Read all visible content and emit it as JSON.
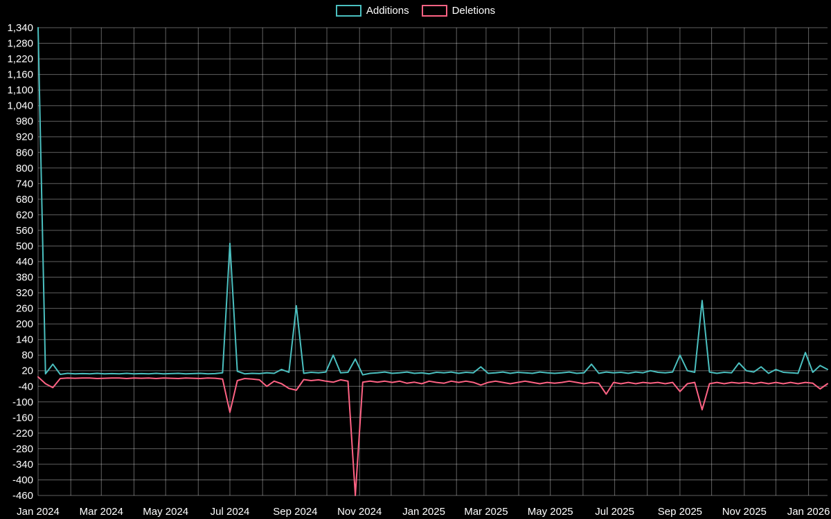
{
  "colors": {
    "background": "#000000",
    "grid": "rgba(255,255,255,0.38)",
    "axis_text": "#ffffff"
  },
  "chart_data": {
    "type": "line",
    "title": "",
    "legend_position": "top",
    "grid": true,
    "x_axis": {
      "tick_labels": [
        "Jan 2024",
        "Mar 2024",
        "May 2024",
        "Jul 2024",
        "Sep 2024",
        "Nov 2024",
        "Jan 2025",
        "Mar 2025",
        "May 2025",
        "Jul 2025",
        "Sep 2025",
        "Nov 2025",
        "Jan 2026"
      ],
      "months_spanned": 24,
      "point_interval": "weekly"
    },
    "y_axis": {
      "min": -460,
      "max": 1340,
      "tick_step": 60,
      "tick_labels": [
        "1,340",
        "1,280",
        "1,220",
        "1,160",
        "1,100",
        "1,040",
        "980",
        "920",
        "860",
        "800",
        "740",
        "680",
        "620",
        "560",
        "500",
        "440",
        "380",
        "320",
        "260",
        "200",
        "140",
        "80",
        "20",
        "-40",
        "-100",
        "-160",
        "-220",
        "-280",
        "-340",
        "-400",
        "-460"
      ]
    },
    "series": [
      {
        "name": "Additions",
        "color": "#4bc0c0",
        "values": [
          1340,
          8,
          45,
          6,
          10,
          8,
          9,
          8,
          10,
          8,
          9,
          8,
          10,
          8,
          9,
          8,
          10,
          8,
          9,
          10,
          8,
          9,
          10,
          8,
          9,
          12,
          510,
          18,
          8,
          10,
          9,
          12,
          10,
          25,
          14,
          270,
          10,
          14,
          12,
          15,
          80,
          12,
          14,
          65,
          4,
          10,
          12,
          15,
          10,
          12,
          15,
          10,
          12,
          8,
          14,
          12,
          15,
          10,
          14,
          12,
          35,
          10,
          12,
          15,
          10,
          14,
          12,
          10,
          15,
          12,
          10,
          12,
          15,
          10,
          12,
          45,
          10,
          15,
          12,
          14,
          10,
          15,
          12,
          20,
          14,
          12,
          15,
          80,
          20,
          14,
          290,
          15,
          10,
          14,
          12,
          50,
          20,
          15,
          35,
          10,
          25,
          14,
          12,
          10,
          90,
          14,
          40,
          25
        ]
      },
      {
        "name": "Deletions",
        "color": "#ff6384",
        "values": [
          -4,
          -30,
          -45,
          -10,
          -8,
          -9,
          -8,
          -8,
          -10,
          -9,
          -8,
          -8,
          -10,
          -8,
          -9,
          -8,
          -10,
          -8,
          -9,
          -10,
          -8,
          -9,
          -10,
          -8,
          -9,
          -12,
          -140,
          -18,
          -10,
          -12,
          -15,
          -40,
          -20,
          -30,
          -48,
          -55,
          -14,
          -18,
          -15,
          -20,
          -24,
          -15,
          -20,
          -460,
          -24,
          -20,
          -24,
          -20,
          -25,
          -20,
          -28,
          -24,
          -30,
          -20,
          -25,
          -28,
          -20,
          -25,
          -20,
          -25,
          -35,
          -25,
          -20,
          -25,
          -30,
          -25,
          -20,
          -25,
          -30,
          -25,
          -28,
          -25,
          -20,
          -25,
          -30,
          -25,
          -28,
          -70,
          -25,
          -30,
          -25,
          -30,
          -25,
          -28,
          -25,
          -30,
          -25,
          -60,
          -30,
          -25,
          -130,
          -30,
          -25,
          -30,
          -25,
          -28,
          -25,
          -30,
          -25,
          -30,
          -25,
          -30,
          -25,
          -30,
          -25,
          -28,
          -50,
          -30
        ]
      }
    ]
  }
}
